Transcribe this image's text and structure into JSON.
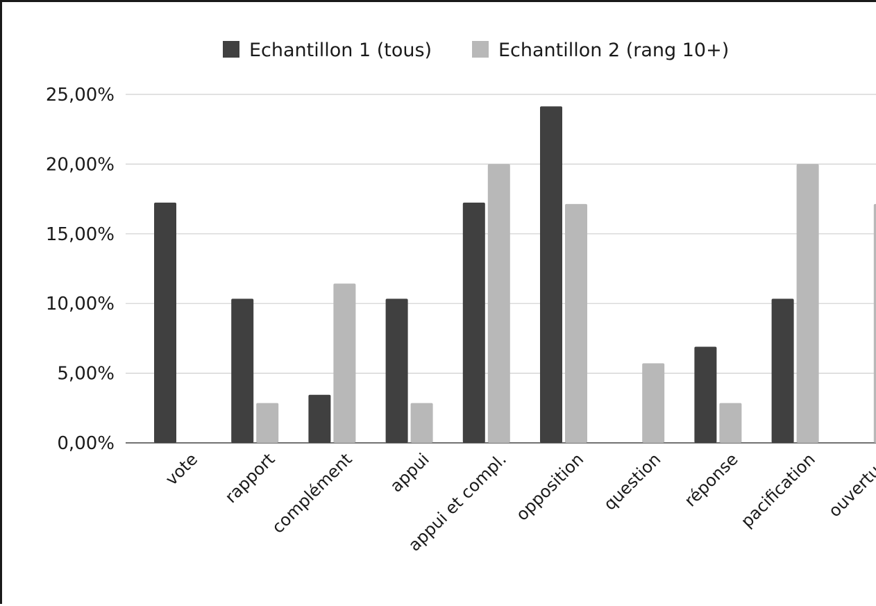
{
  "chart_data": {
    "type": "bar",
    "categories": [
      "vote",
      "rapport",
      "complément",
      "appui",
      "appui et compl.",
      "opposition",
      "question",
      "réponse",
      "pacification",
      "ouverture"
    ],
    "series": [
      {
        "name": "Echantillon 1 (tous)",
        "color": "#404040",
        "values": [
          17.24,
          10.34,
          3.45,
          10.34,
          17.24,
          24.14,
          0,
          6.9,
          10.34,
          0
        ]
      },
      {
        "name": "Echantillon 2 (rang 10+)",
        "color": "#b8b8b8",
        "values": [
          0,
          2.86,
          11.43,
          2.86,
          20.0,
          17.14,
          5.71,
          2.86,
          20.0,
          17.14
        ]
      }
    ],
    "y_ticks": [
      "0,00%",
      "5,00%",
      "10,00%",
      "15,00%",
      "20,00%",
      "25,00%"
    ],
    "ylim": [
      0,
      25
    ],
    "grid": true,
    "legend_position": "top"
  }
}
